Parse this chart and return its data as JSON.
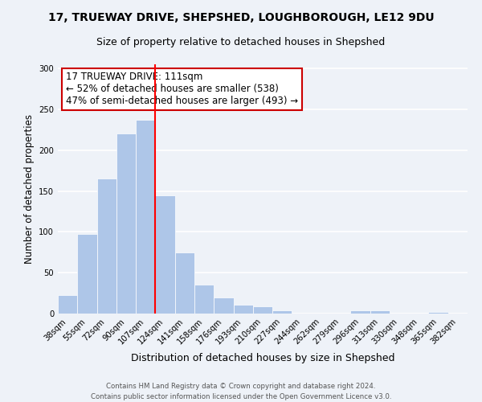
{
  "title1": "17, TRUEWAY DRIVE, SHEPSHED, LOUGHBOROUGH, LE12 9DU",
  "title2": "Size of property relative to detached houses in Shepshed",
  "xlabel": "Distribution of detached houses by size in Shepshed",
  "ylabel": "Number of detached properties",
  "bar_color": "#aec6e8",
  "vline_color": "red",
  "vline_x": 4.5,
  "categories": [
    "38sqm",
    "55sqm",
    "72sqm",
    "90sqm",
    "107sqm",
    "124sqm",
    "141sqm",
    "158sqm",
    "176sqm",
    "193sqm",
    "210sqm",
    "227sqm",
    "244sqm",
    "262sqm",
    "279sqm",
    "296sqm",
    "313sqm",
    "330sqm",
    "348sqm",
    "365sqm",
    "382sqm"
  ],
  "values": [
    23,
    97,
    165,
    220,
    237,
    145,
    75,
    35,
    20,
    11,
    9,
    4,
    0,
    0,
    0,
    4,
    4,
    0,
    0,
    2,
    0
  ],
  "ylim": [
    0,
    305
  ],
  "yticks": [
    0,
    50,
    100,
    150,
    200,
    250,
    300
  ],
  "annotation_title": "17 TRUEWAY DRIVE: 111sqm",
  "annotation_line1": "← 52% of detached houses are smaller (538)",
  "annotation_line2": "47% of semi-detached houses are larger (493) →",
  "annotation_box_edge": "#cc0000",
  "footer1": "Contains HM Land Registry data © Crown copyright and database right 2024.",
  "footer2": "Contains public sector information licensed under the Open Government Licence v3.0.",
  "background_color": "#eef2f8",
  "grid_color": "#ffffff"
}
